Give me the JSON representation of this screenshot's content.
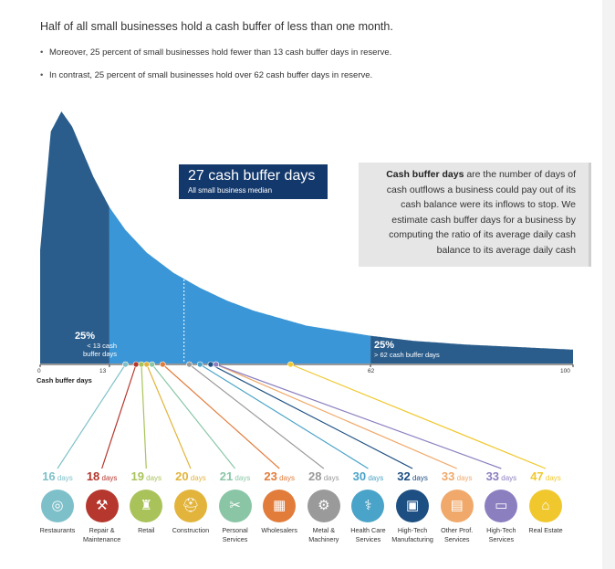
{
  "header": {
    "title": "Half of all small businesses hold a cash buffer of less than one month.",
    "bullets": [
      "Moreover, 25 percent of small businesses hold fewer than 13 cash buffer days in reserve.",
      "In contrast, 25 percent of small businesses hold over 62 cash buffer days in reserve."
    ]
  },
  "callout": {
    "value": "27 cash buffer days",
    "label": "All small business median"
  },
  "info_box": {
    "term": "Cash buffer days",
    "text": " are the number of days of cash outflows a business could pay out of its cash balance were its inflows to stop. We estimate cash buffer days for a business by computing the ratio of its average daily cash balance to its average daily cash"
  },
  "quartile_low": {
    "percent": "25%",
    "text": "< 13 cash buffer days"
  },
  "quartile_high": {
    "percent": "25%",
    "text": "> 62 cash buffer days"
  },
  "colors": {
    "dark_blue": "#2a5d8c",
    "mid_blue": "#3a96d6",
    "callout_navy": "#13386b"
  },
  "chart_data": {
    "type": "area",
    "xlabel": "Cash buffer days",
    "xlim": [
      0,
      100
    ],
    "x_ticks": [
      "0",
      "13",
      "62",
      "100"
    ],
    "median": 27,
    "quartiles": [
      13,
      62
    ],
    "distribution": {
      "x": [
        0,
        2,
        4,
        6,
        8,
        10,
        13,
        16,
        20,
        25,
        30,
        35,
        40,
        50,
        62,
        70,
        80,
        90,
        100
      ],
      "y": [
        0.45,
        0.92,
        1.0,
        0.94,
        0.84,
        0.74,
        0.62,
        0.53,
        0.44,
        0.36,
        0.3,
        0.25,
        0.21,
        0.15,
        0.11,
        0.09,
        0.075,
        0.065,
        0.055
      ]
    },
    "industries": [
      {
        "days": 16,
        "name": "Restaurants",
        "color": "#7ec0c9",
        "icon": "plate-icon",
        "glyph": "◎"
      },
      {
        "days": 18,
        "name": "Repair &\nMaintenance",
        "color": "#b5372d",
        "icon": "toolbox-icon",
        "glyph": "⚒"
      },
      {
        "days": 19,
        "name": "Retail",
        "color": "#a9c35a",
        "icon": "shopping-bag-icon",
        "glyph": "♜"
      },
      {
        "days": 20,
        "name": "Construction",
        "color": "#e3b43b",
        "icon": "hard-hat-icon",
        "glyph": "⛑"
      },
      {
        "days": 21,
        "name": "Personal\nServices",
        "color": "#8ac6a6",
        "icon": "scissors-icon",
        "glyph": "✂"
      },
      {
        "days": 23,
        "name": "Wholesalers",
        "color": "#e27c3b",
        "icon": "boxes-icon",
        "glyph": "▦"
      },
      {
        "days": 28,
        "name": "Metal &\nMachinery",
        "color": "#9a9a9a",
        "icon": "gear-icon",
        "glyph": "⚙"
      },
      {
        "days": 30,
        "name": "Health Care\nServices",
        "color": "#4aa3c8",
        "icon": "caduceus-icon",
        "glyph": "⚕"
      },
      {
        "days": 32,
        "name": "High-Tech\nManufacturing",
        "color": "#1d4f82",
        "icon": "chip-icon",
        "glyph": "▣"
      },
      {
        "days": 33,
        "name": "Other Prof.\nServices",
        "color": "#f0a96a",
        "icon": "folders-icon",
        "glyph": "▤"
      },
      {
        "days": 33,
        "name": "High-Tech\nServices",
        "color": "#8c7fbf",
        "icon": "monitor-icon",
        "glyph": "▭"
      },
      {
        "days": 47,
        "name": "Real Estate",
        "color": "#f0c82e",
        "icon": "for-sale-sign-icon",
        "glyph": "⌂"
      }
    ],
    "days_unit": "days"
  }
}
